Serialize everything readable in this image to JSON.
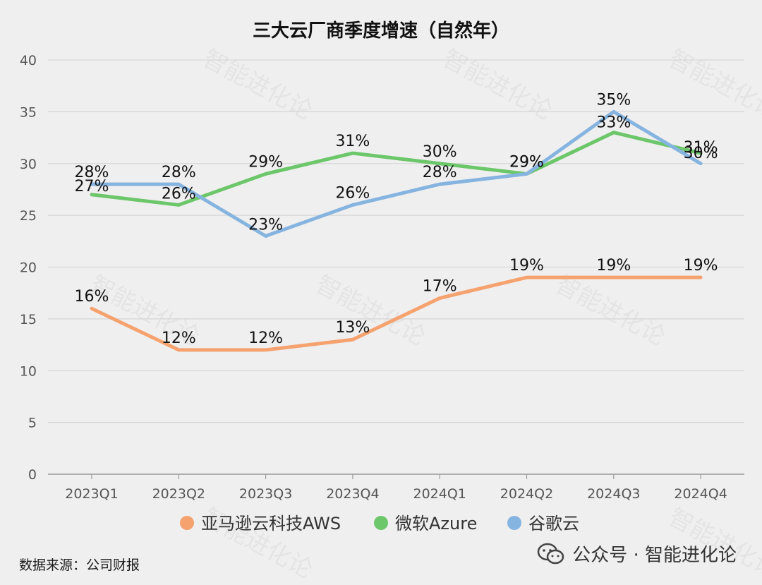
{
  "chart_data": {
    "type": "line",
    "title": "三大云厂商季度增速（自然年）",
    "categories": [
      "2023Q1",
      "2023Q2",
      "2023Q3",
      "2023Q4",
      "2024Q1",
      "2024Q2",
      "2024Q3",
      "2024Q4"
    ],
    "ylim": [
      0,
      40
    ],
    "yticks": [
      0,
      5,
      10,
      15,
      20,
      25,
      30,
      35,
      40
    ],
    "grid": true,
    "legend_position": "bottom",
    "series": [
      {
        "name": "亚马逊云科技AWS",
        "color": "#f5a26e",
        "values": [
          16,
          12,
          12,
          13,
          17,
          19,
          19,
          19
        ],
        "labels": [
          "16%",
          "12%",
          "12%",
          "13%",
          "17%",
          "19%",
          "19%",
          "19%"
        ]
      },
      {
        "name": "微软Azure",
        "color": "#6cc76a",
        "values": [
          27,
          26,
          29,
          31,
          30,
          29,
          33,
          31
        ],
        "labels": [
          "27%",
          "26%",
          "29%",
          "31%",
          "30%",
          "29%",
          "33%",
          "31%"
        ]
      },
      {
        "name": "谷歌云",
        "color": "#86b4e0",
        "values": [
          28,
          28,
          23,
          26,
          28,
          29,
          35,
          30
        ],
        "labels": [
          "28%",
          "28%",
          "23%",
          "26%",
          "28%",
          "29%",
          "35%",
          "30%"
        ]
      }
    ]
  },
  "source_note": "数据来源：公司财报",
  "account": {
    "icon": "wechat-icon",
    "text": "公众号 · 智能进化论"
  },
  "watermark": "智能进化论"
}
